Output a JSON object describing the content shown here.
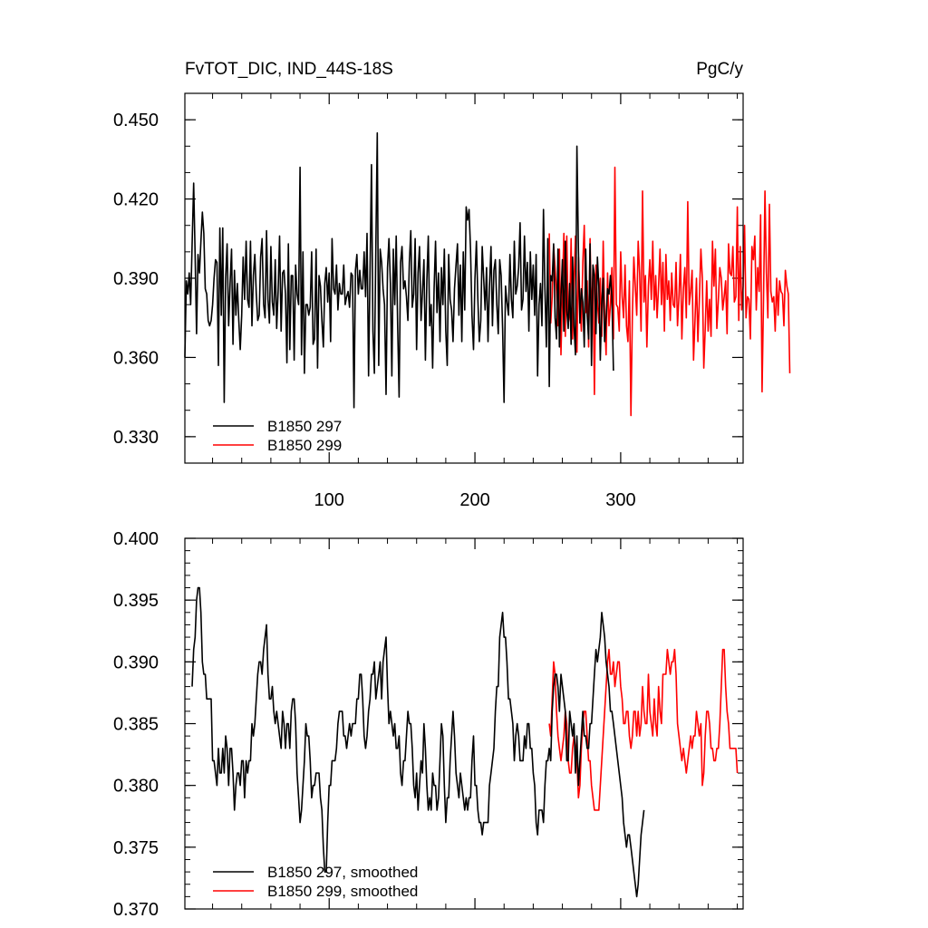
{
  "chart_data": [
    {
      "type": "line",
      "title": "FvTOT_DIC, IND_44S-18S",
      "units": "PgC/y",
      "xlim": [
        1,
        384
      ],
      "ylim": [
        0.32,
        0.46
      ],
      "x_ticks": [
        100,
        200,
        300
      ],
      "x_tick_labels": [
        "100",
        "200",
        "300"
      ],
      "y_ticks": [
        0.33,
        0.36,
        0.39,
        0.42,
        0.45
      ],
      "y_tick_labels": [
        "0.330",
        "0.360",
        "0.390",
        "0.420",
        "0.450"
      ],
      "legend_position": "bottom-left",
      "series": [
        {
          "name": "B1850 297",
          "color": "#000000",
          "x_start": 1,
          "values": [
            0.36,
            0.389,
            0.384,
            0.392,
            0.38,
            0.403,
            0.426,
            0.399,
            0.369,
            0.399,
            0.392,
            0.404,
            0.415,
            0.407,
            0.386,
            0.384,
            0.374,
            0.372,
            0.374,
            0.38,
            0.39,
            0.397,
            0.396,
            0.357,
            0.409,
            0.376,
            0.409,
            0.343,
            0.39,
            0.403,
            0.372,
            0.388,
            0.401,
            0.365,
            0.393,
            0.376,
            0.388,
            0.374,
            0.363,
            0.376,
            0.398,
            0.382,
            0.404,
            0.382,
            0.379,
            0.404,
            0.372,
            0.391,
            0.399,
            0.384,
            0.374,
            0.376,
            0.398,
            0.405,
            0.38,
            0.375,
            0.408,
            0.382,
            0.373,
            0.402,
            0.381,
            0.376,
            0.397,
            0.371,
            0.385,
            0.406,
            0.37,
            0.392,
            0.393,
            0.384,
            0.358,
            0.403,
            0.363,
            0.391,
            0.391,
            0.359,
            0.395,
            0.384,
            0.38,
            0.432,
            0.361,
            0.4,
            0.354,
            0.38,
            0.38,
            0.376,
            0.379,
            0.4,
            0.365,
            0.367,
            0.401,
            0.356,
            0.391,
            0.387,
            0.374,
            0.364,
            0.388,
            0.394,
            0.381,
            0.392,
            0.366,
            0.405,
            0.386,
            0.384,
            0.395,
            0.378,
            0.388,
            0.384,
            0.384,
            0.395,
            0.38,
            0.383,
            0.385,
            0.379,
            0.392,
            0.391,
            0.341,
            0.393,
            0.399,
            0.384,
            0.393,
            0.386,
            0.386,
            0.4,
            0.383,
            0.407,
            0.353,
            0.392,
            0.433,
            0.37,
            0.354,
            0.401,
            0.445,
            0.357,
            0.401,
            0.396,
            0.386,
            0.38,
            0.346,
            0.394,
            0.405,
            0.388,
            0.353,
            0.401,
            0.38,
            0.406,
            0.372,
            0.345,
            0.396,
            0.402,
            0.386,
            0.389,
            0.383,
            0.374,
            0.396,
            0.408,
            0.379,
            0.384,
            0.405,
            0.363,
            0.392,
            0.402,
            0.374,
            0.385,
            0.397,
            0.359,
            0.389,
            0.406,
            0.372,
            0.38,
            0.356,
            0.386,
            0.404,
            0.377,
            0.392,
            0.366,
            0.394,
            0.38,
            0.401,
            0.37,
            0.357,
            0.399,
            0.382,
            0.378,
            0.366,
            0.386,
            0.395,
            0.403,
            0.376,
            0.395,
            0.366,
            0.4,
            0.378,
            0.417,
            0.412,
            0.416,
            0.401,
            0.376,
            0.363,
            0.39,
            0.404,
            0.382,
            0.366,
            0.374,
            0.402,
            0.39,
            0.378,
            0.394,
            0.366,
            0.387,
            0.402,
            0.372,
            0.393,
            0.397,
            0.38,
            0.369,
            0.397,
            0.391,
            0.371,
            0.343,
            0.387,
            0.381,
            0.376,
            0.399,
            0.382,
            0.375,
            0.404,
            0.384,
            0.387,
            0.394,
            0.411,
            0.378,
            0.382,
            0.406,
            0.385,
            0.396,
            0.37,
            0.4,
            0.382,
            0.395,
            0.376,
            0.399,
            0.353,
            0.38,
            0.388,
            0.372,
            0.416,
            0.386,
            0.364,
            0.405,
            0.349,
            0.391,
            0.389,
            0.403,
            0.375,
            0.367,
            0.401,
            0.364,
            0.383,
            0.397,
            0.37,
            0.404,
            0.378,
            0.371,
            0.388,
            0.365,
            0.398,
            0.372,
            0.361,
            0.44,
            0.4,
            0.373,
            0.386,
            0.381,
            0.364,
            0.401,
            0.376,
            0.367,
            0.403,
            0.357,
            0.395,
            0.391,
            0.369,
            0.398,
            0.387,
            0.359,
            0.38,
            0.39,
            0.366,
            0.375,
            0.386,
            0.384,
            0.391,
            0.383,
            0.355
          ]
        },
        {
          "name": "B1850 299",
          "color": "#ff0000",
          "x_start": 251,
          "values": [
            0.407,
            0.373,
            0.383,
            0.402,
            0.394,
            0.385,
            0.372,
            0.401,
            0.361,
            0.385,
            0.407,
            0.368,
            0.406,
            0.373,
            0.376,
            0.405,
            0.367,
            0.388,
            0.406,
            0.362,
            0.398,
            0.38,
            0.37,
            0.396,
            0.41,
            0.377,
            0.389,
            0.364,
            0.405,
            0.372,
            0.394,
            0.346,
            0.395,
            0.381,
            0.373,
            0.39,
            0.368,
            0.404,
            0.376,
            0.361,
            0.392,
            0.372,
            0.38,
            0.394,
            0.367,
            0.432,
            0.38,
            0.379,
            0.37,
            0.4,
            0.383,
            0.375,
            0.395,
            0.372,
            0.366,
            0.389,
            0.338,
            0.376,
            0.398,
            0.387,
            0.376,
            0.404,
            0.392,
            0.37,
            0.423,
            0.381,
            0.391,
            0.364,
            0.387,
            0.397,
            0.382,
            0.404,
            0.378,
            0.391,
            0.375,
            0.387,
            0.401,
            0.38,
            0.396,
            0.37,
            0.399,
            0.382,
            0.389,
            0.374,
            0.392,
            0.38,
            0.379,
            0.396,
            0.372,
            0.383,
            0.399,
            0.367,
            0.386,
            0.394,
            0.375,
            0.419,
            0.38,
            0.385,
            0.393,
            0.359,
            0.374,
            0.39,
            0.366,
            0.382,
            0.401,
            0.39,
            0.356,
            0.371,
            0.389,
            0.37,
            0.382,
            0.368,
            0.404,
            0.387,
            0.401,
            0.371,
            0.382,
            0.394,
            0.39,
            0.378,
            0.383,
            0.389,
            0.369,
            0.403,
            0.392,
            0.391,
            0.402,
            0.381,
            0.383,
            0.417,
            0.374,
            0.402,
            0.378,
            0.387,
            0.41,
            0.375,
            0.383,
            0.382,
            0.367,
            0.402,
            0.397,
            0.406,
            0.378,
            0.394,
            0.385,
            0.414,
            0.347,
            0.382,
            0.423,
            0.392,
            0.375,
            0.418,
            0.385,
            0.381,
            0.383,
            0.37,
            0.39,
            0.376,
            0.389,
            0.385,
            0.384,
            0.372,
            0.393,
            0.387,
            0.384,
            0.354
          ]
        }
      ]
    },
    {
      "type": "line",
      "xlim": [
        1,
        384
      ],
      "ylim": [
        0.37,
        0.4
      ],
      "x_ticks": [
        100,
        200,
        300
      ],
      "y_ticks": [
        0.37,
        0.375,
        0.38,
        0.385,
        0.39,
        0.395,
        0.4
      ],
      "y_tick_labels": [
        "0.370",
        "0.375",
        "0.380",
        "0.385",
        "0.390",
        "0.395",
        "0.400"
      ],
      "legend_position": "bottom-left",
      "series": [
        {
          "name": "B1850 297, smoothed",
          "color": "#000000",
          "x_start": 6,
          "values": [
            0.388,
            0.391,
            0.392,
            0.395,
            0.396,
            0.396,
            0.394,
            0.39,
            0.389,
            0.389,
            0.387,
            0.387,
            0.387,
            0.387,
            0.382,
            0.382,
            0.381,
            0.38,
            0.383,
            0.381,
            0.381,
            0.383,
            0.381,
            0.384,
            0.383,
            0.38,
            0.383,
            0.383,
            0.381,
            0.378,
            0.38,
            0.381,
            0.381,
            0.38,
            0.382,
            0.382,
            0.379,
            0.382,
            0.381,
            0.382,
            0.382,
            0.385,
            0.384,
            0.385,
            0.387,
            0.389,
            0.39,
            0.39,
            0.389,
            0.391,
            0.392,
            0.393,
            0.389,
            0.387,
            0.387,
            0.388,
            0.386,
            0.385,
            0.386,
            0.385,
            0.384,
            0.383,
            0.386,
            0.385,
            0.383,
            0.385,
            0.385,
            0.383,
            0.386,
            0.387,
            0.387,
            0.385,
            0.381,
            0.379,
            0.377,
            0.378,
            0.38,
            0.382,
            0.385,
            0.384,
            0.384,
            0.382,
            0.379,
            0.38,
            0.38,
            0.381,
            0.381,
            0.381,
            0.379,
            0.378,
            0.375,
            0.373,
            0.373,
            0.377,
            0.38,
            0.38,
            0.382,
            0.382,
            0.382,
            0.383,
            0.385,
            0.386,
            0.386,
            0.386,
            0.384,
            0.384,
            0.383,
            0.384,
            0.385,
            0.384,
            0.385,
            0.385,
            0.385,
            0.387,
            0.387,
            0.389,
            0.389,
            0.387,
            0.384,
            0.383,
            0.384,
            0.386,
            0.387,
            0.389,
            0.389,
            0.39,
            0.387,
            0.388,
            0.389,
            0.39,
            0.387,
            0.39,
            0.391,
            0.392,
            0.388,
            0.385,
            0.386,
            0.385,
            0.384,
            0.385,
            0.383,
            0.383,
            0.384,
            0.381,
            0.38,
            0.382,
            0.382,
            0.384,
            0.386,
            0.385,
            0.385,
            0.383,
            0.38,
            0.379,
            0.381,
            0.378,
            0.38,
            0.382,
            0.381,
            0.385,
            0.383,
            0.38,
            0.378,
            0.379,
            0.378,
            0.381,
            0.38,
            0.38,
            0.378,
            0.379,
            0.382,
            0.385,
            0.384,
            0.38,
            0.377,
            0.379,
            0.379,
            0.382,
            0.384,
            0.386,
            0.384,
            0.381,
            0.38,
            0.379,
            0.381,
            0.38,
            0.379,
            0.378,
            0.379,
            0.378,
            0.379,
            0.379,
            0.382,
            0.384,
            0.38,
            0.38,
            0.378,
            0.377,
            0.377,
            0.376,
            0.377,
            0.377,
            0.377,
            0.377,
            0.38,
            0.381,
            0.382,
            0.383,
            0.386,
            0.388,
            0.388,
            0.392,
            0.393,
            0.394,
            0.392,
            0.392,
            0.39,
            0.387,
            0.387,
            0.386,
            0.385,
            0.382,
            0.384,
            0.385,
            0.384,
            0.382,
            0.382,
            0.382,
            0.384,
            0.383,
            0.385,
            0.385,
            0.383,
            0.383,
            0.381,
            0.38,
            0.377,
            0.376,
            0.378,
            0.378,
            0.378,
            0.377,
            0.38,
            0.382,
            0.382,
            0.383,
            0.382,
            0.386,
            0.388,
            0.389,
            0.389,
            0.388,
            0.386,
            0.389,
            0.388,
            0.387,
            0.386,
            0.382,
            0.382,
            0.386,
            0.385,
            0.384,
            0.385,
            0.381,
            0.384,
            0.38,
            0.382,
            0.384,
            0.386,
            0.384,
            0.384,
            0.383,
            0.383,
            0.385,
            0.385,
            0.387,
            0.389,
            0.391,
            0.39,
            0.391,
            0.392,
            0.394,
            0.393,
            0.392,
            0.39,
            0.389,
            0.388,
            0.386,
            0.386,
            0.385,
            0.384,
            0.383,
            0.382,
            0.381,
            0.38,
            0.379,
            0.377,
            0.376,
            0.375,
            0.376,
            0.376,
            0.375,
            0.374,
            0.373,
            0.372,
            0.371,
            0.372,
            0.374,
            0.376,
            0.377,
            0.378
          ]
        },
        {
          "name": "B1850 299, smoothed",
          "color": "#ff0000",
          "x_start": 251,
          "values": [
            0.385,
            0.384,
            0.387,
            0.39,
            0.389,
            0.386,
            0.384,
            0.383,
            0.382,
            0.383,
            0.384,
            0.386,
            0.385,
            0.382,
            0.381,
            0.381,
            0.383,
            0.384,
            0.383,
            0.382,
            0.379,
            0.38,
            0.383,
            0.385,
            0.386,
            0.386,
            0.384,
            0.382,
            0.382,
            0.38,
            0.379,
            0.378,
            0.378,
            0.378,
            0.378,
            0.38,
            0.382,
            0.384,
            0.386,
            0.388,
            0.39,
            0.391,
            0.389,
            0.389,
            0.39,
            0.388,
            0.389,
            0.39,
            0.39,
            0.388,
            0.387,
            0.385,
            0.385,
            0.386,
            0.386,
            0.384,
            0.383,
            0.384,
            0.386,
            0.386,
            0.384,
            0.386,
            0.384,
            0.385,
            0.388,
            0.386,
            0.385,
            0.385,
            0.389,
            0.386,
            0.385,
            0.384,
            0.387,
            0.385,
            0.384,
            0.388,
            0.386,
            0.385,
            0.389,
            0.389,
            0.389,
            0.391,
            0.39,
            0.389,
            0.39,
            0.39,
            0.391,
            0.389,
            0.385,
            0.384,
            0.383,
            0.382,
            0.383,
            0.382,
            0.381,
            0.382,
            0.383,
            0.384,
            0.383,
            0.384,
            0.384,
            0.386,
            0.385,
            0.384,
            0.385,
            0.38,
            0.381,
            0.384,
            0.386,
            0.386,
            0.385,
            0.383,
            0.383,
            0.382,
            0.382,
            0.383,
            0.383,
            0.385,
            0.388,
            0.391,
            0.391,
            0.388,
            0.386,
            0.385,
            0.383,
            0.383,
            0.383,
            0.383,
            0.383,
            0.381
          ]
        }
      ]
    }
  ]
}
